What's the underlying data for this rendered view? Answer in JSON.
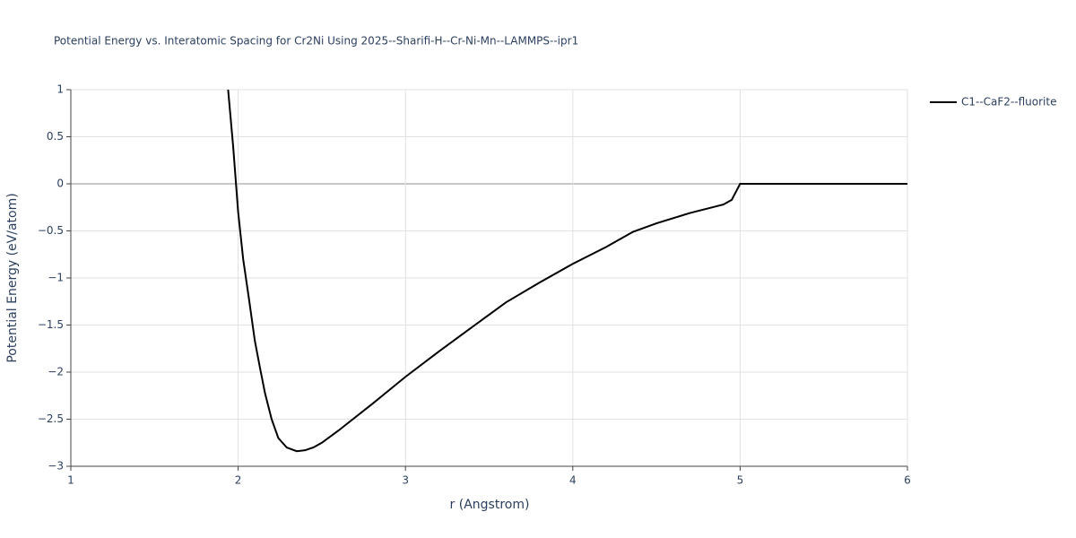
{
  "chart_data": {
    "type": "line",
    "title": "Potential Energy vs. Interatomic Spacing for Cr2Ni Using 2025--Sharifi-H--Cr-Ni-Mn--LAMMPS--ipr1",
    "x_label": "r (Angstrom)",
    "y_label": "Potential Energy (eV/atom)",
    "x": [
      1.94,
      1.97,
      2.0,
      2.03,
      2.066,
      2.1,
      2.13,
      2.16,
      2.2,
      2.24,
      2.29,
      2.35,
      2.4,
      2.45,
      2.5,
      2.6,
      2.8,
      3.0,
      3.2,
      3.4,
      3.6,
      3.8,
      4.0,
      4.2,
      4.36,
      4.5,
      4.7,
      4.9,
      4.95,
      5.0,
      5.5,
      6.0
    ],
    "series": [
      {
        "name": "C1--CaF2--fluorite",
        "color": "#000000",
        "values": [
          1.0,
          0.4,
          -0.3,
          -0.8,
          -1.24,
          -1.67,
          -1.95,
          -2.22,
          -2.5,
          -2.7,
          -2.8,
          -2.84,
          -2.83,
          -2.8,
          -2.75,
          -2.62,
          -2.34,
          -2.05,
          -1.78,
          -1.52,
          -1.26,
          -1.05,
          -0.85,
          -0.67,
          -0.51,
          -0.42,
          -0.31,
          -0.22,
          -0.17,
          0,
          0,
          0
        ]
      }
    ],
    "xlim": [
      1,
      6
    ],
    "xticks": [
      1,
      2,
      3,
      4,
      5,
      6
    ],
    "ylim": [
      -3,
      1
    ],
    "yticks": [
      {
        "value": -3,
        "label": "−3"
      },
      {
        "value": -2.5,
        "label": "−2.5"
      },
      {
        "value": -2,
        "label": "−2"
      },
      {
        "value": -1.5,
        "label": "−1.5"
      },
      {
        "value": -1,
        "label": "−1"
      },
      {
        "value": -0.5,
        "label": "−0.5"
      },
      0,
      0.5,
      1
    ],
    "grid": true,
    "legend": "right"
  }
}
